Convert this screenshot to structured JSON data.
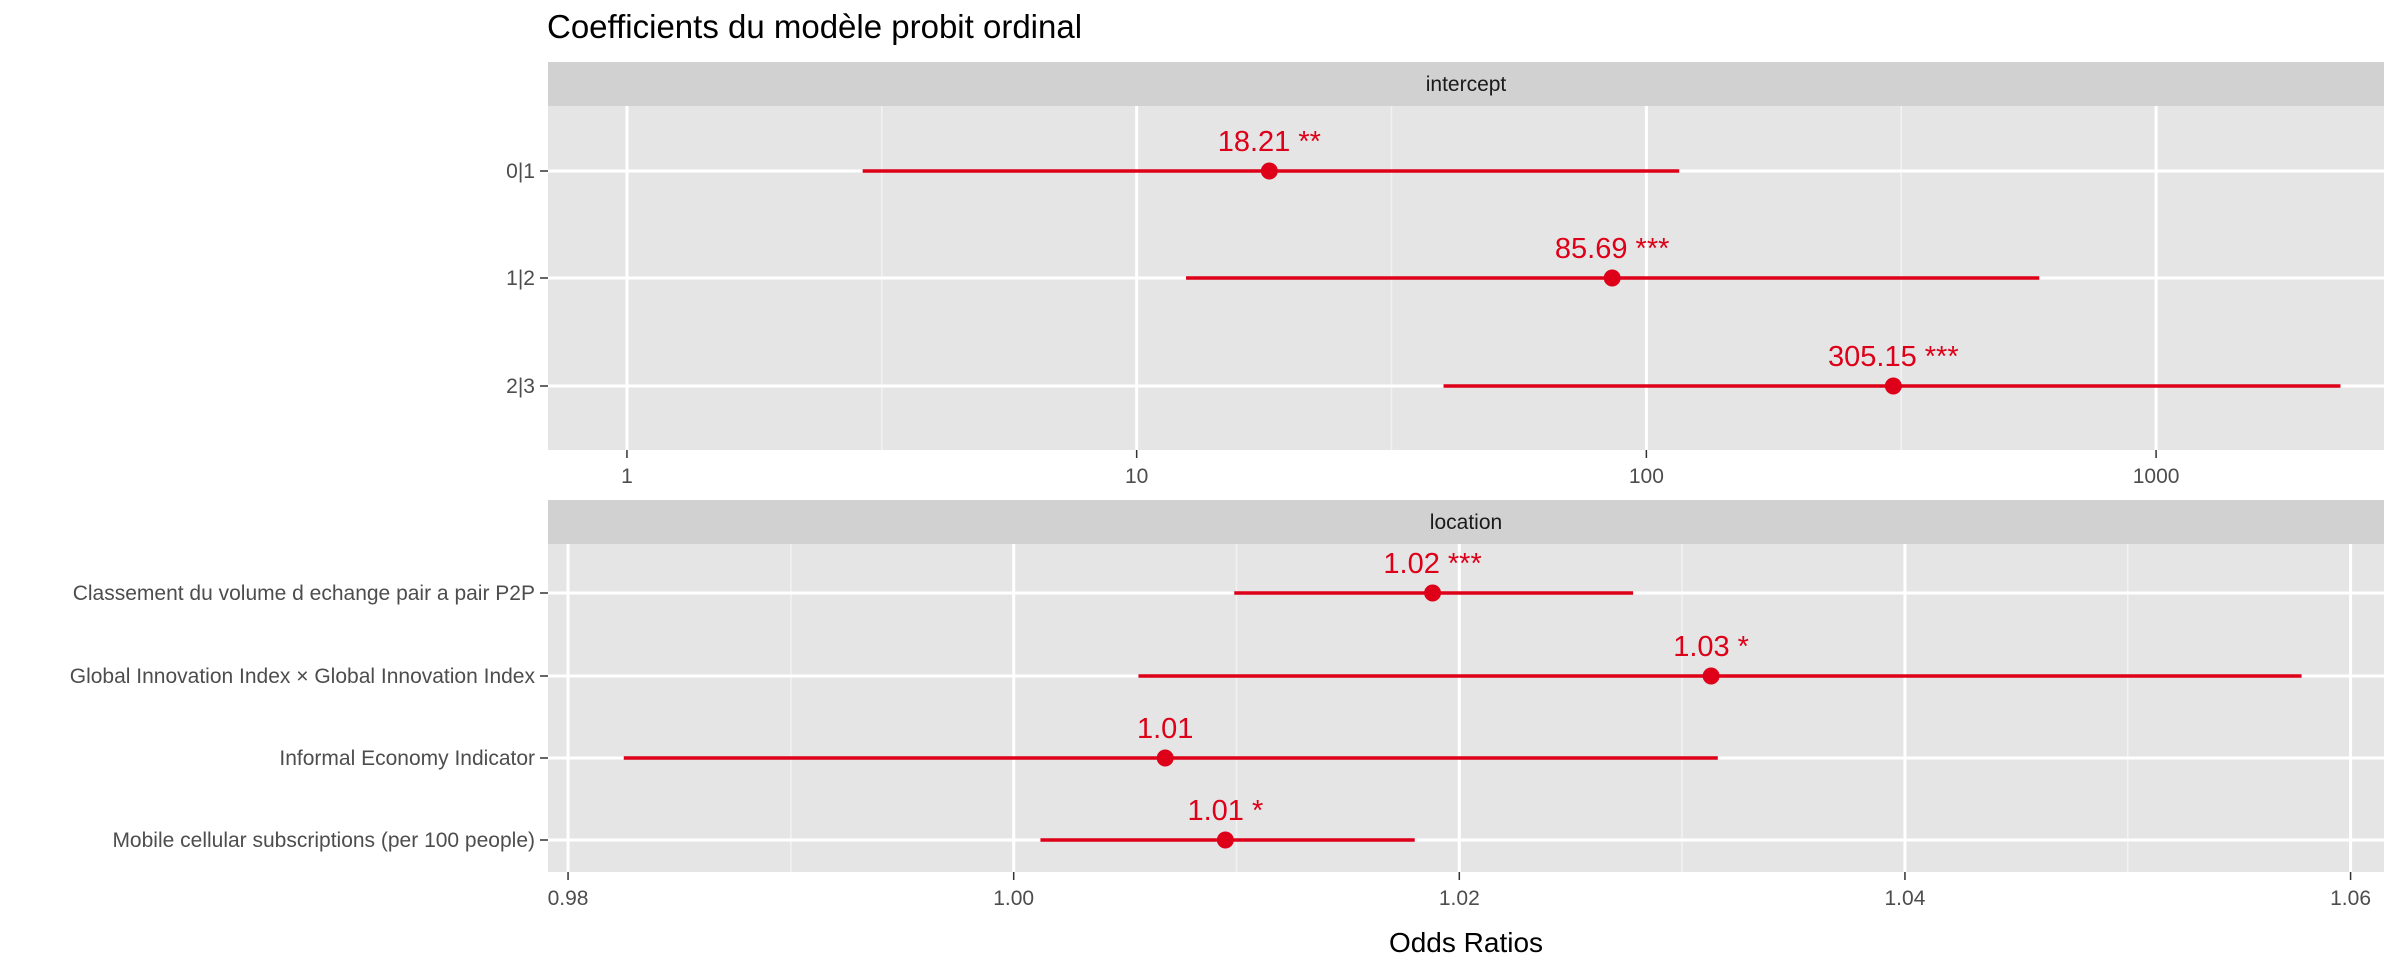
{
  "chart_data": {
    "title": "Coefficients du modèle probit ordinal",
    "xlabel": "Odds Ratios",
    "ylabel": "",
    "color": "#dd0018",
    "panel_background": "#e5e5e5",
    "strip_background": "#d1d1d1",
    "grid": true,
    "panels": [
      {
        "type": "forest",
        "strip_label": "intercept",
        "x_scale": "log10",
        "xlim": [
          0.7,
          2800
        ],
        "x_ticks": [
          1,
          10,
          100,
          1000
        ],
        "x_tick_labels": [
          "1",
          "10",
          "100",
          "1000"
        ],
        "rows": [
          {
            "term": "0|1",
            "estimate": 18.21,
            "conf_low": 2.9,
            "conf_high": 116,
            "label": "18.21 **"
          },
          {
            "term": "1|2",
            "estimate": 85.69,
            "conf_low": 12.5,
            "conf_high": 590,
            "label": "85.69 ***"
          },
          {
            "term": "2|3",
            "estimate": 305.15,
            "conf_low": 40,
            "conf_high": 2300,
            "label": "305.15 ***"
          }
        ]
      },
      {
        "type": "forest",
        "strip_label": "location",
        "x_scale": "linear",
        "xlim": [
          0.9791,
          1.0615
        ],
        "x_ticks": [
          0.98,
          1.0,
          1.02,
          1.04,
          1.06
        ],
        "x_tick_labels": [
          "0.98",
          "1.00",
          "1.02",
          "1.04",
          "1.06"
        ],
        "rows": [
          {
            "term": "Classement du volume d echange pair a pair P2P",
            "estimate": 1.0188,
            "conf_low": 1.0099,
            "conf_high": 1.0278,
            "label": "1.02 ***"
          },
          {
            "term": "Global Innovation Index × Global Innovation Index",
            "estimate": 1.0313,
            "conf_low": 1.0056,
            "conf_high": 1.0578,
            "label": "1.03 *"
          },
          {
            "term": "Informal Economy Indicator",
            "estimate": 1.0068,
            "conf_low": 0.9825,
            "conf_high": 1.0316,
            "label": "1.01"
          },
          {
            "term": "Mobile cellular subscriptions (per 100 people)",
            "estimate": 1.0095,
            "conf_low": 1.0012,
            "conf_high": 1.018,
            "label": "1.01 *"
          }
        ]
      }
    ]
  }
}
